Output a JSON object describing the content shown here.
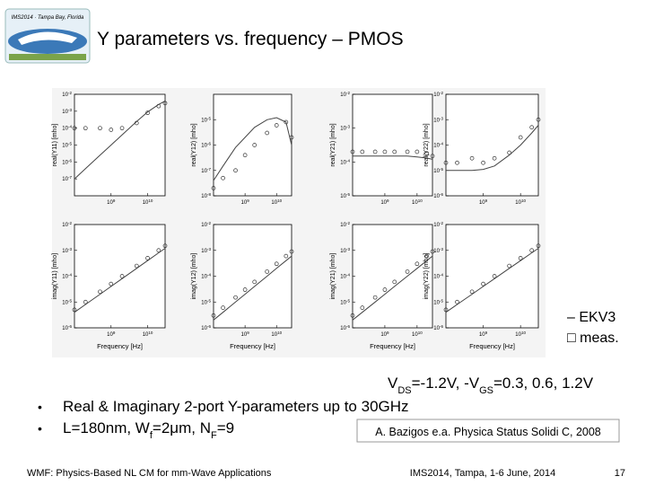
{
  "header": {
    "title": "Y parameters vs. frequency – PMOS",
    "logo_text": "IMS2014 · Tampa Bay, Florida"
  },
  "chart_data": [
    {
      "type": "line",
      "ylabel": "real(Y11) [mho]",
      "log_scale": true,
      "xlim": [
        100000000.0,
        30000000000.0
      ],
      "xticks": [
        {
          "value": 1000000000.0,
          "label": "109"
        },
        {
          "value": 10000000000.0,
          "label": "1010"
        }
      ],
      "ylim": [
        1e-08,
        0.01
      ],
      "yticks": [
        {
          "value": 0.01,
          "label": "10-2"
        },
        {
          "value": 0.001,
          "label": "10-3"
        },
        {
          "value": 0.0001,
          "label": "10-4"
        },
        {
          "value": 1e-05,
          "label": "10-5"
        },
        {
          "value": 1e-06,
          "label": "10-6"
        },
        {
          "value": 1e-07,
          "label": "10-7"
        }
      ],
      "x": [
        100000000.0,
        200000000.0,
        500000000.0,
        1000000000.0,
        2000000000.0,
        5000000000.0,
        10000000000.0,
        20000000000.0,
        30000000000.0
      ],
      "series": [
        {
          "color": "#444444",
          "values": [
            1e-07,
            4e-07,
            2.5e-06,
            1e-05,
            4e-05,
            0.00025,
            0.0009,
            0.0025,
            0.004
          ]
        },
        {
          "color": "#333333",
          "marker": "o",
          "values": [
            0.0001,
            0.0001,
            0.0001,
            8e-05,
            0.0001,
            0.0002,
            0.0008,
            0.002,
            0.003
          ]
        }
      ]
    },
    {
      "type": "line",
      "ylabel": "real(Y12) [mho]",
      "log_scale": true,
      "xlim": [
        100000000.0,
        30000000000.0
      ],
      "xticks": [
        {
          "value": 1000000000.0,
          "label": "109"
        },
        {
          "value": 10000000000.0,
          "label": "1010"
        }
      ],
      "ylim": [
        1e-08,
        0.0001
      ],
      "yticks": [
        {
          "value": 1e-05,
          "label": "10-5"
        },
        {
          "value": 1e-06,
          "label": "10-6"
        },
        {
          "value": 1e-07,
          "label": "10-7"
        },
        {
          "value": 1e-08,
          "label": "10-8"
        }
      ],
      "x": [
        100000000.0,
        200000000.0,
        500000000.0,
        1000000000.0,
        2000000000.0,
        5000000000.0,
        10000000000.0,
        20000000000.0,
        30000000000.0
      ],
      "series": [
        {
          "color": "#444444",
          "values": [
            4e-08,
            1.5e-07,
            8e-07,
            2e-06,
            5e-06,
            1e-05,
            1.2e-05,
            8e-06,
            1e-06
          ]
        },
        {
          "color": "#333333",
          "marker": "o",
          "values": [
            2e-08,
            5e-08,
            1e-07,
            4e-07,
            1e-06,
            3e-06,
            6e-06,
            8e-06,
            2e-06
          ]
        }
      ]
    },
    {
      "type": "line",
      "ylabel": "real(Y21) [mho]",
      "log_scale": true,
      "xlim": [
        100000000.0,
        30000000000.0
      ],
      "xticks": [
        {
          "value": 1000000000.0,
          "label": "109"
        },
        {
          "value": 10000000000.0,
          "label": "1010"
        }
      ],
      "ylim": [
        1e-05,
        0.01
      ],
      "yticks": [
        {
          "value": 0.01,
          "label": "10-2"
        },
        {
          "value": 0.001,
          "label": "10-3"
        },
        {
          "value": 0.0001,
          "label": "10-4"
        },
        {
          "value": 1e-05,
          "label": "10-5"
        }
      ],
      "x": [
        100000000.0,
        200000000.0,
        500000000.0,
        1000000000.0,
        2000000000.0,
        5000000000.0,
        10000000000.0,
        20000000000.0,
        30000000000.0
      ],
      "series": [
        {
          "color": "#444444",
          "values": [
            0.00015,
            0.00015,
            0.00015,
            0.00015,
            0.00015,
            0.00015,
            0.00014,
            0.00013,
            0.00012
          ]
        },
        {
          "color": "#333333",
          "marker": "o",
          "values": [
            0.0002,
            0.0002,
            0.0002,
            0.0002,
            0.0002,
            0.0002,
            0.0002,
            0.00018,
            0.00015
          ]
        }
      ]
    },
    {
      "type": "line",
      "ylabel": "real(Y22) [mho]",
      "log_scale": true,
      "xlim": [
        100000000.0,
        30000000000.0
      ],
      "xticks": [
        {
          "value": 1000000000.0,
          "label": "109"
        },
        {
          "value": 10000000000.0,
          "label": "1010"
        }
      ],
      "ylim": [
        1e-06,
        0.01
      ],
      "yticks": [
        {
          "value": 0.01,
          "label": "10-2"
        },
        {
          "value": 0.001,
          "label": "10-3"
        },
        {
          "value": 0.0001,
          "label": "10-4"
        },
        {
          "value": 1e-05,
          "label": "10-5"
        },
        {
          "value": 1e-06,
          "label": "10-6"
        }
      ],
      "x": [
        100000000.0,
        200000000.0,
        500000000.0,
        1000000000.0,
        2000000000.0,
        5000000000.0,
        10000000000.0,
        20000000000.0,
        30000000000.0
      ],
      "series": [
        {
          "color": "#444444",
          "values": [
            1e-05,
            1e-05,
            1e-05,
            1.1e-05,
            1.5e-05,
            4e-05,
            0.0001,
            0.0003,
            0.0006
          ]
        },
        {
          "color": "#333333",
          "marker": "o",
          "values": [
            2e-05,
            2e-05,
            3e-05,
            2e-05,
            3e-05,
            5e-05,
            0.0002,
            0.0005,
            0.001
          ]
        }
      ]
    },
    {
      "type": "line",
      "ylabel": "imag(Y11) [mho]",
      "xlabel": "Frequency [Hz]",
      "log_scale": true,
      "xlim": [
        100000000.0,
        30000000000.0
      ],
      "xticks": [
        {
          "value": 1000000000.0,
          "label": "109"
        },
        {
          "value": 10000000000.0,
          "label": "1010"
        }
      ],
      "ylim": [
        1e-06,
        0.01
      ],
      "yticks": [
        {
          "value": 0.01,
          "label": "10-2"
        },
        {
          "value": 0.001,
          "label": "10-3"
        },
        {
          "value": 0.0001,
          "label": "10-4"
        },
        {
          "value": 1e-05,
          "label": "10-5"
        },
        {
          "value": 1e-06,
          "label": "10-6"
        }
      ],
      "x": [
        100000000.0,
        200000000.0,
        500000000.0,
        1000000000.0,
        2000000000.0,
        5000000000.0,
        10000000000.0,
        20000000000.0,
        30000000000.0
      ],
      "series": [
        {
          "color": "#444444",
          "values": [
            4e-06,
            8e-06,
            2e-05,
            4e-05,
            8e-05,
            0.0002,
            0.0004,
            0.0008,
            0.0012
          ]
        },
        {
          "color": "#333333",
          "marker": "o",
          "values": [
            5e-06,
            1e-05,
            2.5e-05,
            5e-05,
            0.0001,
            0.00025,
            0.0005,
            0.001,
            0.0015
          ]
        }
      ]
    },
    {
      "type": "line",
      "ylabel": "imag(Y12) [mho]",
      "xlabel": "Frequency [Hz]",
      "log_scale": true,
      "xlim": [
        100000000.0,
        30000000000.0
      ],
      "xticks": [
        {
          "value": 1000000000.0,
          "label": "109"
        },
        {
          "value": 10000000000.0,
          "label": "1010"
        }
      ],
      "ylim": [
        1e-06,
        0.01
      ],
      "yticks": [
        {
          "value": 0.01,
          "label": "10-2"
        },
        {
          "value": 0.001,
          "label": "10-3"
        },
        {
          "value": 0.0001,
          "label": "10-4"
        },
        {
          "value": 1e-05,
          "label": "10-5"
        },
        {
          "value": 1e-06,
          "label": "10-6"
        }
      ],
      "x": [
        100000000.0,
        200000000.0,
        500000000.0,
        1000000000.0,
        2000000000.0,
        5000000000.0,
        10000000000.0,
        20000000000.0,
        30000000000.0
      ],
      "series": [
        {
          "color": "#444444",
          "values": [
            2e-06,
            4e-06,
            1e-05,
            2e-05,
            4e-05,
            0.0001,
            0.0002,
            0.0004,
            0.0006
          ]
        },
        {
          "color": "#333333",
          "marker": "o",
          "values": [
            3e-06,
            6e-06,
            1.5e-05,
            3e-05,
            6e-05,
            0.00015,
            0.0003,
            0.0006,
            0.0009
          ]
        }
      ]
    },
    {
      "type": "line",
      "ylabel": "imag(Y21) [mho]",
      "xlabel": "Frequency [Hz]",
      "log_scale": true,
      "xlim": [
        100000000.0,
        30000000000.0
      ],
      "xticks": [
        {
          "value": 1000000000.0,
          "label": "109"
        },
        {
          "value": 10000000000.0,
          "label": "1010"
        }
      ],
      "ylim": [
        1e-06,
        0.01
      ],
      "yticks": [
        {
          "value": 0.01,
          "label": "10-2"
        },
        {
          "value": 0.001,
          "label": "10-3"
        },
        {
          "value": 0.0001,
          "label": "10-4"
        },
        {
          "value": 1e-05,
          "label": "10-5"
        },
        {
          "value": 1e-06,
          "label": "10-6"
        }
      ],
      "x": [
        100000000.0,
        200000000.0,
        500000000.0,
        1000000000.0,
        2000000000.0,
        5000000000.0,
        10000000000.0,
        20000000000.0,
        30000000000.0
      ],
      "series": [
        {
          "color": "#444444",
          "values": [
            2e-06,
            4e-06,
            1e-05,
            2e-05,
            4e-05,
            0.0001,
            0.0002,
            0.0004,
            0.0006
          ]
        },
        {
          "color": "#333333",
          "marker": "o",
          "values": [
            3e-06,
            6e-06,
            1.5e-05,
            3e-05,
            6e-05,
            0.00015,
            0.0003,
            0.0006,
            0.0009
          ]
        }
      ]
    },
    {
      "type": "line",
      "ylabel": "imag(Y22) [mho]",
      "xlabel": "Frequency [Hz]",
      "log_scale": true,
      "xlim": [
        100000000.0,
        30000000000.0
      ],
      "xticks": [
        {
          "value": 1000000000.0,
          "label": "109"
        },
        {
          "value": 10000000000.0,
          "label": "1010"
        }
      ],
      "ylim": [
        1e-06,
        0.01
      ],
      "yticks": [
        {
          "value": 0.01,
          "label": "10-2"
        },
        {
          "value": 0.001,
          "label": "10-3"
        },
        {
          "value": 0.0001,
          "label": "10-4"
        },
        {
          "value": 1e-05,
          "label": "10-5"
        },
        {
          "value": 1e-06,
          "label": "10-6"
        }
      ],
      "x": [
        100000000.0,
        200000000.0,
        500000000.0,
        1000000000.0,
        2000000000.0,
        5000000000.0,
        10000000000.0,
        20000000000.0,
        30000000000.0
      ],
      "series": [
        {
          "color": "#444444",
          "values": [
            4e-06,
            8e-06,
            2e-05,
            4e-05,
            8e-05,
            0.0002,
            0.0004,
            0.0008,
            0.0012
          ]
        },
        {
          "color": "#333333",
          "marker": "o",
          "values": [
            5e-06,
            1e-05,
            2.5e-05,
            5e-05,
            0.0001,
            0.00025,
            0.0005,
            0.001,
            0.0015
          ]
        }
      ]
    }
  ],
  "legend": {
    "model": "– EKV3",
    "measured": "□ meas."
  },
  "bias": [
    "V",
    "DS",
    "=-1.2V, -V",
    "GS",
    "=0.3, 0.6, 1.2V"
  ],
  "bullets": [
    [
      "Real & Imaginary 2-port Y-parameters up to 30GHz"
    ],
    [
      "L=180nm, W",
      "f",
      "=2μm, N",
      "F",
      "=9"
    ]
  ],
  "citation": "A. Bazigos e.a. Physica Status Solidi C, 2008",
  "footer": {
    "left": "WMF: Physics-Based NL CM for mm-Wave Applications",
    "center": "IMS2014, Tampa, 1-6 June, 2014",
    "page": "17"
  }
}
